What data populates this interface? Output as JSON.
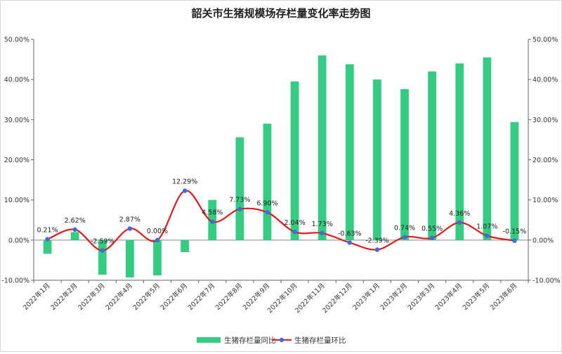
{
  "chart_data": {
    "type": "bar+line",
    "title": "韶关市生猪规模场存栏量变化率走势图",
    "categories": [
      "2022年1月",
      "2022年2月",
      "2022年3月",
      "2022年4月",
      "2022年5月",
      "2022年6月",
      "2022年7月",
      "2022年8月",
      "2022年9月",
      "2022年10月",
      "2022年11月",
      "2022年12月",
      "2023年1月",
      "2023年2月",
      "2023年3月",
      "2023年4月",
      "2023年5月",
      "2023年6月"
    ],
    "series": [
      {
        "name": "生猪存栏量同比",
        "type": "bar",
        "axis": "left",
        "color": "#33cc80",
        "values": [
          -3.4,
          2.0,
          -8.6,
          -9.3,
          -8.8,
          -3.0,
          10.0,
          25.6,
          29.0,
          39.5,
          46.0,
          43.8,
          40.0,
          37.6,
          42.0,
          44.0,
          45.5,
          29.4
        ]
      },
      {
        "name": "生猪存栏量环比",
        "type": "line",
        "axis": "right",
        "color": "#e81818",
        "marker_color": "#3a6ee8",
        "values": [
          0.21,
          2.62,
          -2.59,
          2.87,
          0.0,
          12.29,
          4.58,
          7.73,
          6.9,
          2.04,
          1.73,
          -0.63,
          -2.39,
          0.74,
          0.55,
          4.36,
          1.07,
          -0.15
        ],
        "labels": [
          "0.21%",
          "2.62%",
          "-2.59%",
          "2.87%",
          "0.00%",
          "12.29%",
          "4.58%",
          "7.73%",
          "6.90%",
          "2.04%",
          "1.73%",
          "-0.63%",
          "-2.39%",
          "0.74%",
          "0.55%",
          "4.36%",
          "1.07%",
          "-0.15%"
        ]
      }
    ],
    "y_left": {
      "min": -10,
      "max": 50,
      "step": 10,
      "tick_labels": [
        "-10.00%",
        "0.00%",
        "10.00%",
        "20.00%",
        "30.00%",
        "40.00%",
        "50.00%"
      ]
    },
    "y_right": {
      "min": -10,
      "max": 50,
      "step": 10,
      "tick_labels": [
        "-10.00%",
        "0.00%",
        "10.00%",
        "20.00%",
        "30.00%",
        "40.00%",
        "50.00%"
      ]
    },
    "legend_position": "bottom-center",
    "grid": false
  }
}
